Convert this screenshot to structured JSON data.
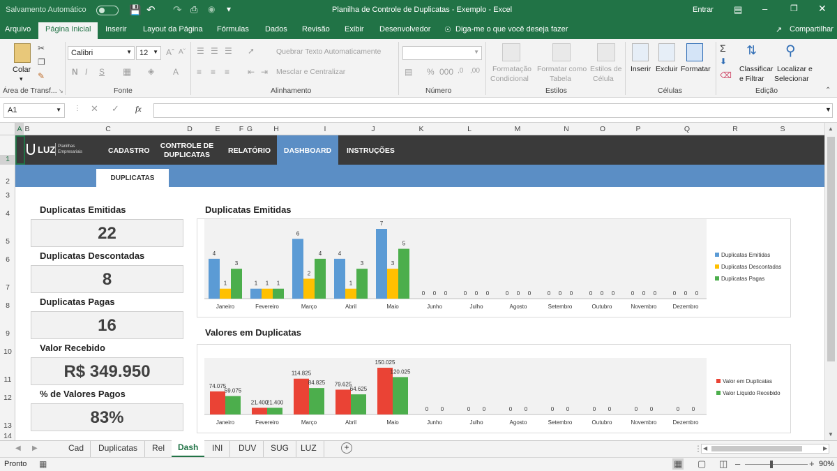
{
  "titlebar": {
    "autosave": "Salvamento Automático",
    "title": "Planilha de Controle de Duplicatas - Exemplo  -  Excel",
    "signin": "Entrar"
  },
  "ribbon_tabs": [
    "Arquivo",
    "Página Inicial",
    "Inserir",
    "Layout da Página",
    "Fórmulas",
    "Dados",
    "Revisão",
    "Exibir",
    "Desenvolvedor"
  ],
  "tell_me": "Diga-me o que você deseja fazer",
  "share": "Compartilhar",
  "ribbon": {
    "paste": "Colar",
    "clipboard_group": "Área de Transf...",
    "font_name": "Calibri",
    "font_size": "12",
    "font_group": "Fonte",
    "wrap_text": "Quebrar Texto Automaticamente",
    "merge_center": "Mesclar e Centralizar",
    "align_group": "Alinhamento",
    "number_group": "Número",
    "cond_format_1": "Formatação",
    "cond_format_2": "Condicional",
    "format_table_1": "Formatar como",
    "format_table_2": "Tabela",
    "cell_styles_1": "Estilos de",
    "cell_styles_2": "Célula",
    "styles_group": "Estilos",
    "insert": "Inserir",
    "delete": "Excluir",
    "format": "Formatar",
    "cells_group": "Células",
    "sort_1": "Classificar",
    "sort_2": "e Filtrar",
    "find_1": "Localizar e",
    "find_2": "Selecionar",
    "edit_group": "Edição"
  },
  "formula_bar": {
    "name_box": "A1",
    "fx": "fx",
    "value": ""
  },
  "columns": [
    "A",
    "B",
    "C",
    "D",
    "E",
    "F",
    "G",
    "H",
    "I",
    "J",
    "K",
    "L",
    "M",
    "N",
    "O",
    "P",
    "Q",
    "R",
    "S"
  ],
  "rows": [
    "1",
    "2",
    "3",
    "4",
    "5",
    "6",
    "7",
    "8",
    "9",
    "10",
    "11",
    "12",
    "13",
    "14"
  ],
  "dashboard": {
    "logo": "LUZ",
    "logo_sub1": "Planilhas",
    "logo_sub2": "Empresariais",
    "nav": [
      "CADASTRO",
      "CONTROLE DE DUPLICATAS",
      "RELATÓRIO",
      "DASHBOARD",
      "INSTRUÇÕES"
    ],
    "subtab": "DUPLICATAS",
    "kpis": [
      {
        "title": "Duplicatas Emitidas",
        "value": "22"
      },
      {
        "title": "Duplicatas Descontadas",
        "value": "8"
      },
      {
        "title": "Duplicatas Pagas",
        "value": "16"
      },
      {
        "title": "Valor Recebido",
        "value": "R$ 349.950"
      },
      {
        "title": "% de Valores Pagos",
        "value": "83%"
      }
    ]
  },
  "chart_data": [
    {
      "type": "bar",
      "title": "Duplicatas Emitidas",
      "categories": [
        "Janeiro",
        "Fevereiro",
        "Março",
        "Abril",
        "Maio",
        "Junho",
        "Julho",
        "Agosto",
        "Setembro",
        "Outubro",
        "Novembro",
        "Dezembro"
      ],
      "ylim": [
        0,
        7
      ],
      "legend": "right",
      "series": [
        {
          "name": "Duplicatas Emitidas",
          "color": "#5b9bd5",
          "values": [
            4,
            1,
            6,
            4,
            7,
            0,
            0,
            0,
            0,
            0,
            0,
            0
          ]
        },
        {
          "name": "Duplicatas Descontadas",
          "color": "#ffc000",
          "values": [
            1,
            1,
            2,
            1,
            3,
            0,
            0,
            0,
            0,
            0,
            0,
            0
          ]
        },
        {
          "name": "Duplicatas Pagas",
          "color": "#4cae4c",
          "values": [
            3,
            1,
            4,
            3,
            5,
            0,
            0,
            0,
            0,
            0,
            0,
            0
          ]
        }
      ]
    },
    {
      "type": "bar",
      "title": "Valores em Duplicatas",
      "categories": [
        "Janeiro",
        "Fevereiro",
        "Março",
        "Abril",
        "Maio",
        "Junho",
        "Julho",
        "Agosto",
        "Setembro",
        "Outubro",
        "Novembro",
        "Dezembro"
      ],
      "ylim": [
        0,
        150025
      ],
      "legend": "right",
      "series": [
        {
          "name": "Valor em Duplicatas",
          "color": "#ea4335",
          "values": [
            74075,
            21400,
            114825,
            79625,
            150025,
            0,
            0,
            0,
            0,
            0,
            0,
            0
          ],
          "labels": [
            "74.075",
            "21.400",
            "114.825",
            "79.625",
            "150.025",
            "0",
            "0",
            "0",
            "0",
            "0",
            "0",
            "0"
          ]
        },
        {
          "name": "Valor Líquido Recebido",
          "color": "#4cae4c",
          "values": [
            59075,
            21400,
            84825,
            64625,
            120025,
            0,
            0,
            0,
            0,
            0,
            0,
            0
          ],
          "labels": [
            "59.075",
            "21.400",
            "84.825",
            "64.625",
            "120.025",
            "0",
            "0",
            "0",
            "0",
            "0",
            "0",
            "0"
          ]
        }
      ]
    }
  ],
  "sheet_tabs": [
    "Cad",
    "Duplicatas",
    "Rel",
    "Dash",
    "INI",
    "DUV",
    "SUG",
    "LUZ"
  ],
  "active_sheet": "Dash",
  "status": {
    "ready": "Pronto",
    "zoom": "90%"
  }
}
